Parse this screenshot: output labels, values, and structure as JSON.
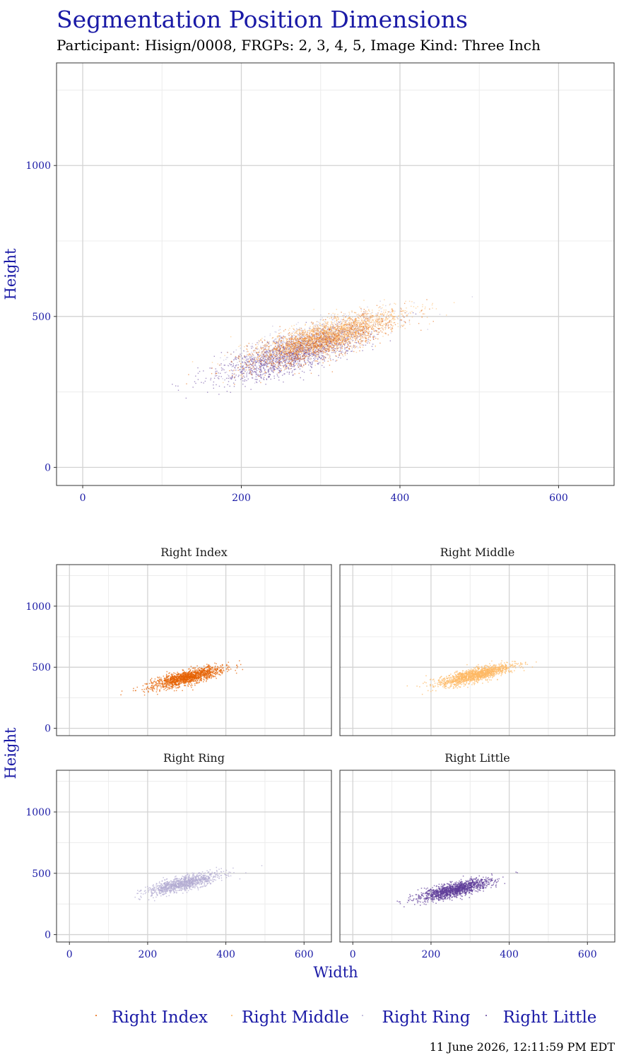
{
  "header": {
    "title": "Segmentation Position Dimensions",
    "subtitle": "Participant: Hisign/0008, FRGPs: 2, 3, 4, 5, Image Kind: Three Inch",
    "timestamp": "11 June 2026, 12:11:59 PM EDT"
  },
  "chart_data": [
    {
      "type": "scatter",
      "panel": "combined",
      "xlabel": "",
      "ylabel": "Height",
      "xlim": [
        -33,
        670
      ],
      "ylim": [
        -60,
        1340
      ],
      "x_ticks": [
        0,
        200,
        400,
        600
      ],
      "y_ticks": [
        0,
        500,
        1000
      ],
      "grid": true,
      "series": [
        {
          "name": "Right Index",
          "color": "#e66101",
          "center": [
            300,
            420
          ],
          "n": 1400
        },
        {
          "name": "Right Middle",
          "color": "#fdb863",
          "center": [
            310,
            440
          ],
          "n": 1400
        },
        {
          "name": "Right Ring",
          "color": "#b2abd2",
          "center": [
            290,
            420
          ],
          "n": 1100
        },
        {
          "name": "Right Little",
          "color": "#5e3c99",
          "center": [
            260,
            370
          ],
          "n": 1400
        }
      ]
    },
    {
      "type": "scatter",
      "panel": "facets",
      "xlabel": "Width",
      "ylabel": "Height",
      "xlim": [
        -33,
        670
      ],
      "ylim": [
        -60,
        1340
      ],
      "x_ticks": [
        0,
        200,
        400,
        600
      ],
      "y_ticks": [
        0,
        500,
        1000
      ],
      "grid": true,
      "facets": [
        "Right Index",
        "Right Middle",
        "Right Ring",
        "Right Little"
      ]
    }
  ],
  "legend": {
    "placement": "bottom",
    "items": [
      "Right Index",
      "Right Middle",
      "Right Ring",
      "Right Little"
    ]
  },
  "colors": {
    "title": "#1a1aa6",
    "grid_major": "#d3d3d3",
    "grid_minor": "#ececec",
    "panel_border": "#333333"
  }
}
